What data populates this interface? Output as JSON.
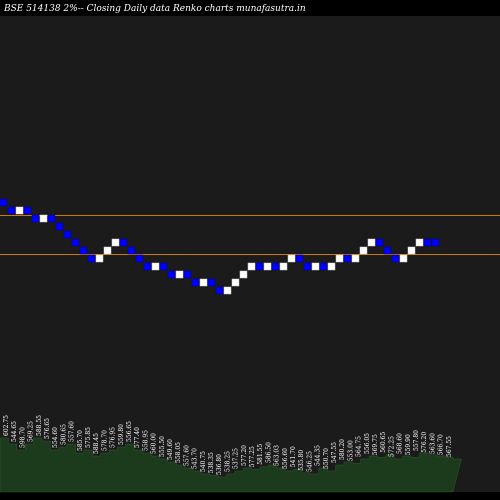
{
  "chart_data": {
    "type": "renko",
    "title": "BSE 514138  2%--  Closing Daily data Renko  charts munafasutra.in",
    "colors": {
      "background": "#000000",
      "panel": "#1b1b1b",
      "up_brick": "#ffffff",
      "down_brick": "#0000ff",
      "level_line": "#cc7a00",
      "volume": "#1c3a1c"
    },
    "reference_levels": [
      595.5,
      571.0
    ],
    "bricks": [
      {
        "dir": "down",
        "value": 600.5
      },
      {
        "dir": "down",
        "value": 595.5
      },
      {
        "dir": "up",
        "value": 600.5
      },
      {
        "dir": "down",
        "value": 595.5
      },
      {
        "dir": "down",
        "value": 590.5
      },
      {
        "dir": "up",
        "value": 595.5
      },
      {
        "dir": "down",
        "value": 590.5
      },
      {
        "dir": "down",
        "value": 585.5
      },
      {
        "dir": "down",
        "value": 580.5
      },
      {
        "dir": "down",
        "value": 575.5
      },
      {
        "dir": "down",
        "value": 570.5
      },
      {
        "dir": "down",
        "value": 565.5
      },
      {
        "dir": "up",
        "value": 570.5
      },
      {
        "dir": "up",
        "value": 575.5
      },
      {
        "dir": "up",
        "value": 580.5
      },
      {
        "dir": "down",
        "value": 575.5
      },
      {
        "dir": "down",
        "value": 570.5
      },
      {
        "dir": "down",
        "value": 565.5
      },
      {
        "dir": "down",
        "value": 560.5
      },
      {
        "dir": "up",
        "value": 565.5
      },
      {
        "dir": "down",
        "value": 560.5
      },
      {
        "dir": "down",
        "value": 555.5
      },
      {
        "dir": "up",
        "value": 560.5
      },
      {
        "dir": "down",
        "value": 555.5
      },
      {
        "dir": "down",
        "value": 550.5
      },
      {
        "dir": "up",
        "value": 555.5
      },
      {
        "dir": "down",
        "value": 550.5
      },
      {
        "dir": "down",
        "value": 545.5
      },
      {
        "dir": "up",
        "value": 550.5
      },
      {
        "dir": "up",
        "value": 555.5
      },
      {
        "dir": "up",
        "value": 560.5
      },
      {
        "dir": "up",
        "value": 565.5
      },
      {
        "dir": "down",
        "value": 560.5
      },
      {
        "dir": "up",
        "value": 565.5
      },
      {
        "dir": "down",
        "value": 560.5
      },
      {
        "dir": "up",
        "value": 565.5
      },
      {
        "dir": "up",
        "value": 570.5
      },
      {
        "dir": "down",
        "value": 565.5
      },
      {
        "dir": "down",
        "value": 560.5
      },
      {
        "dir": "up",
        "value": 565.5
      },
      {
        "dir": "down",
        "value": 560.5
      },
      {
        "dir": "up",
        "value": 565.5
      },
      {
        "dir": "up",
        "value": 570.5
      },
      {
        "dir": "down",
        "value": 565.5
      },
      {
        "dir": "up",
        "value": 570.5
      },
      {
        "dir": "up",
        "value": 575.5
      },
      {
        "dir": "up",
        "value": 580.5
      },
      {
        "dir": "down",
        "value": 575.5
      },
      {
        "dir": "down",
        "value": 570.5
      },
      {
        "dir": "down",
        "value": 565.5
      },
      {
        "dir": "up",
        "value": 570.5
      },
      {
        "dir": "up",
        "value": 575.5
      },
      {
        "dir": "up",
        "value": 580.5
      },
      {
        "dir": "down",
        "value": 575.5
      },
      {
        "dir": "down",
        "value": 575.5
      }
    ],
    "volume_labels": [
      "602.75",
      "544.65",
      "598.70",
      "569.25",
      "588.55",
      "576.65",
      "554.60",
      "580.65",
      "557.60",
      "585.70",
      "575.85",
      "588.45",
      "578.70",
      "576.95",
      "559.80",
      "556.65",
      "577.40",
      "558.95",
      "560.00",
      "555.50",
      "549.60",
      "558.05",
      "557.60",
      "543.70",
      "540.75",
      "538.35",
      "536.80",
      "538.25",
      "537.25",
      "577.20",
      "577.25",
      "581.55",
      "586.50",
      "563.03",
      "556.60",
      "541.70",
      "535.80",
      "546.25",
      "544.35",
      "550.70",
      "547.55",
      "580.20",
      "553.00",
      "564.75",
      "556.05",
      "569.75",
      "560.65",
      "572.25",
      "568.60",
      "559.90",
      "557.80",
      "576.20",
      "563.60",
      "566.70",
      "567.55"
    ],
    "volumes": [
      0.9,
      0.8,
      0.7,
      0.8,
      0.9,
      0.85,
      0.7,
      0.75,
      0.8,
      0.65,
      0.7,
      0.6,
      0.65,
      0.7,
      0.75,
      0.8,
      0.7,
      0.65,
      0.6,
      0.55,
      0.5,
      0.45,
      0.4,
      0.35,
      0.3,
      0.28,
      0.25,
      0.3,
      0.35,
      0.4,
      0.38,
      0.42,
      0.45,
      0.4,
      0.35,
      0.38,
      0.32,
      0.3,
      0.4,
      0.35,
      0.45,
      0.5,
      0.48,
      0.55,
      0.6,
      0.58,
      0.62,
      0.55,
      0.6,
      0.58,
      0.65,
      0.62,
      0.6,
      0.58,
      0.55
    ]
  }
}
